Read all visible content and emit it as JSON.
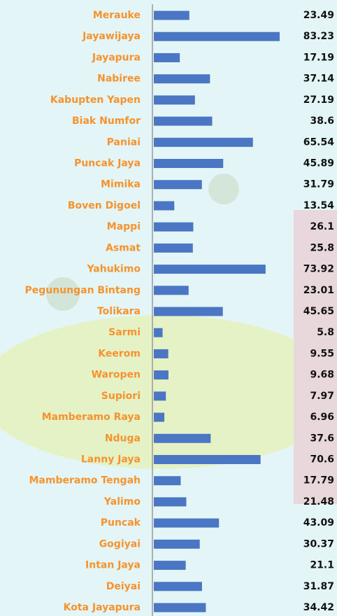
{
  "chart_data": {
    "type": "bar",
    "orientation": "horizontal",
    "categories": [
      "Merauke",
      "Jayawijaya",
      "Jayapura",
      "Nabiree",
      "Kabupten Yapen",
      "Biak Numfor",
      "Paniai",
      "Puncak Jaya",
      "Mimika",
      "Boven Digoel",
      "Mappi",
      "Asmat",
      "Yahukimo",
      "Pegunungan Bintang",
      "Tolikara",
      "Sarmi",
      "Keerom",
      "Waropen",
      "Supiori",
      "Mamberamo Raya",
      "Nduga",
      "Lanny Jaya",
      "Mamberamo Tengah",
      "Yalimo",
      "Puncak",
      "Gogiyai",
      "Intan Jaya",
      "Deiyai",
      "Kota Jayapura"
    ],
    "values": [
      23.49,
      83.23,
      17.19,
      37.14,
      27.19,
      38.6,
      65.54,
      45.89,
      31.79,
      13.54,
      26.1,
      25.8,
      73.92,
      23.01,
      45.65,
      5.8,
      9.55,
      9.68,
      7.97,
      6.96,
      37.6,
      70.6,
      17.79,
      21.48,
      43.09,
      30.37,
      21.1,
      31.87,
      34.42
    ],
    "color": "#4a76c4",
    "label_color": "#f7922d",
    "value_color": "#111111"
  }
}
